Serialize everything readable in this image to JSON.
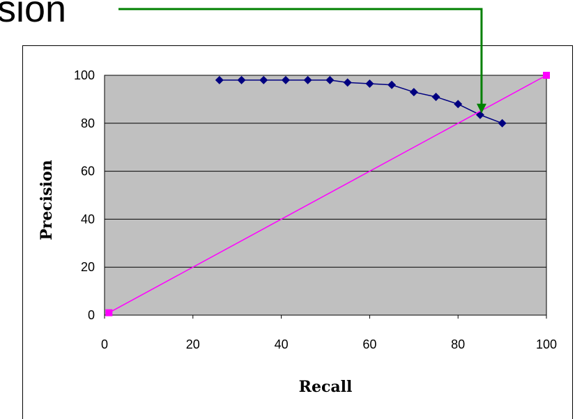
{
  "page": {
    "title": "sion"
  },
  "colors": {
    "plot_background": "#c0c0c0",
    "gridline": "#000000",
    "series_main": "#000080",
    "series_diagonal": "#ff00ff",
    "callout_arrow": "#008000"
  },
  "chart_data": {
    "type": "line",
    "title": "",
    "xlabel": "Recall",
    "ylabel": "Precision",
    "xlim": [
      0,
      100
    ],
    "ylim": [
      0,
      100
    ],
    "x_ticks": [
      "0",
      "20",
      "40",
      "60",
      "80",
      "100"
    ],
    "y_ticks": [
      "0",
      "20",
      "40",
      "60",
      "80",
      "100"
    ],
    "grid": "horizontal",
    "legend": "none",
    "series": [
      {
        "marker": "diamond",
        "color": "#000080",
        "x": [
          26,
          31,
          36,
          41,
          46,
          51,
          55,
          60,
          65,
          70,
          75,
          80,
          85,
          90
        ],
        "y": [
          98,
          98,
          98,
          98,
          98,
          98,
          97,
          96.5,
          96,
          93,
          91,
          88,
          83.5,
          80
        ]
      },
      {
        "marker": "square",
        "color": "#ff00ff",
        "x": [
          1,
          100
        ],
        "y": [
          1,
          100
        ]
      }
    ],
    "annotation": {
      "type": "arrow",
      "target_x": 85,
      "target_y": 83.5,
      "color": "#008000"
    }
  }
}
